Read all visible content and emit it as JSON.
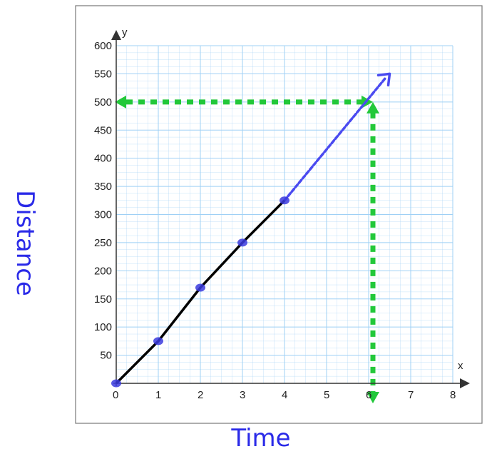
{
  "chart_data": {
    "type": "line",
    "title": "",
    "xlabel": "Time",
    "ylabel": "Distance",
    "x_axis_letter": "x",
    "y_axis_letter": "y",
    "xlim": [
      0,
      8
    ],
    "ylim": [
      0,
      600
    ],
    "x_ticks": [
      "0",
      "1",
      "2",
      "3",
      "4",
      "5",
      "6",
      "7",
      "8"
    ],
    "y_ticks": [
      "50",
      "100",
      "150",
      "200",
      "250",
      "300",
      "350",
      "400",
      "450",
      "500",
      "550",
      "600"
    ],
    "grid": true,
    "series": [
      {
        "x": [
          0,
          1,
          2,
          3,
          4
        ],
        "y": [
          0,
          75,
          170,
          250,
          325
        ],
        "color": "#000000"
      }
    ],
    "extrapolation": {
      "from": [
        4,
        325
      ],
      "to": [
        6.5,
        550
      ],
      "color": "#4a4af0"
    },
    "guide_lines": {
      "x": 6,
      "y": 500,
      "color": "#22c83a"
    },
    "colors": {
      "grid": "#9fd0f5",
      "axis": "#333333",
      "points": "#3b3bde",
      "handwriting": "#2a2ae8"
    }
  }
}
